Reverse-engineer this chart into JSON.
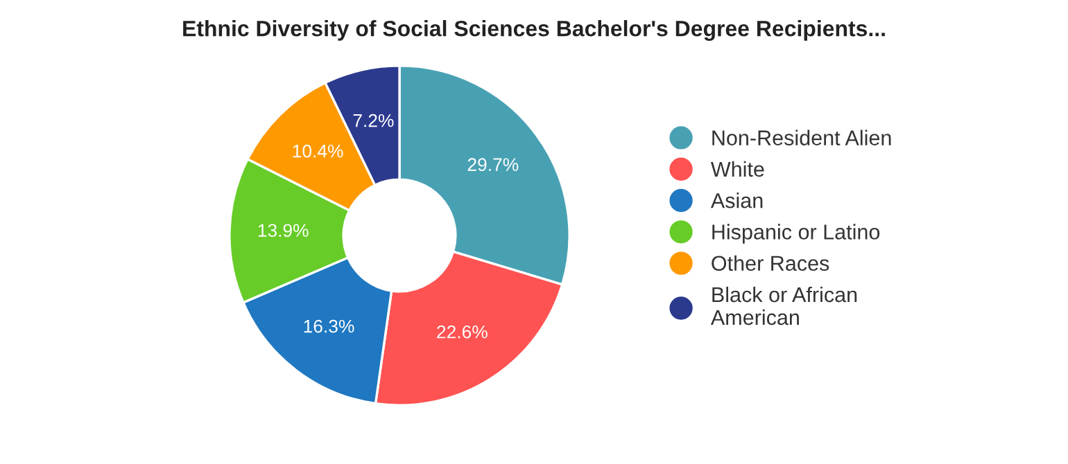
{
  "chart_data": {
    "type": "donut",
    "title": "Ethnic Diversity of Social Sciences Bachelor's Degree Recipients...",
    "categories": [
      "Non-Resident Alien",
      "White",
      "Asian",
      "Hispanic or Latino",
      "Other Races",
      "Black or African\nAmerican"
    ],
    "values": [
      29.7,
      22.6,
      16.3,
      13.9,
      10.4,
      7.2
    ],
    "colors": [
      "#48a1b3",
      "#fe5352",
      "#1f78c1",
      "#67cc28",
      "#ff9900",
      "#2c3a8e"
    ],
    "value_labels": [
      "29.7%",
      "22.6%",
      "16.3%",
      "13.9%",
      "10.4%",
      "7.2%"
    ],
    "legend": "right"
  }
}
